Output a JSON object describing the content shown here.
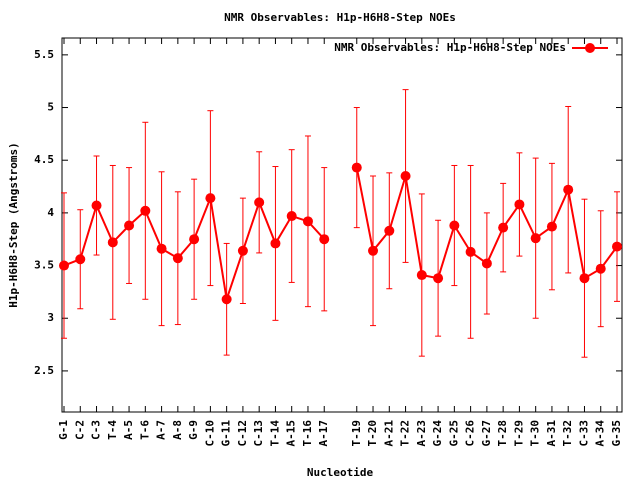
{
  "chart_data": {
    "type": "line",
    "title": "NMR Observables: H1p-H6H8-Step NOEs",
    "xlabel": "Nucleotide",
    "ylabel": "H1p-H6H8-Step (Angstroms)",
    "categories": [
      "G-1",
      "C-2",
      "C-3",
      "T-4",
      "A-5",
      "T-6",
      "A-7",
      "A-8",
      "G-9",
      "C-10",
      "G-11",
      "C-12",
      "C-13",
      "T-14",
      "A-15",
      "T-16",
      "A-17",
      null,
      "T-19",
      "T-20",
      "A-21",
      "T-22",
      "A-23",
      "G-24",
      "G-25",
      "C-26",
      "G-27",
      "T-28",
      "T-29",
      "T-30",
      "A-31",
      "T-32",
      "C-33",
      "A-34",
      "G-35"
    ],
    "series": [
      {
        "name": "NMR Observables: H1p-H6H8-Step NOEs",
        "color": "#ff0000",
        "values": [
          3.5,
          3.56,
          4.07,
          3.72,
          3.88,
          4.02,
          3.66,
          3.57,
          3.75,
          4.14,
          3.18,
          3.64,
          4.1,
          3.71,
          3.97,
          3.92,
          3.75,
          null,
          4.43,
          3.64,
          3.83,
          4.35,
          3.41,
          3.38,
          3.88,
          3.63,
          3.52,
          3.86,
          4.08,
          3.76,
          3.87,
          4.22,
          3.38,
          3.47,
          3.68
        ],
        "errors": [
          0.69,
          0.47,
          0.47,
          0.73,
          0.55,
          0.84,
          0.73,
          0.63,
          0.57,
          0.83,
          0.53,
          0.5,
          0.48,
          0.73,
          0.63,
          0.81,
          0.68,
          null,
          0.57,
          0.71,
          0.55,
          0.82,
          0.77,
          0.55,
          0.57,
          0.82,
          0.48,
          0.42,
          0.49,
          0.76,
          0.6,
          0.79,
          0.75,
          0.55,
          0.52
        ]
      }
    ],
    "ylim": [
      2.11,
      5.66
    ],
    "yticks": [
      2.5,
      3,
      3.5,
      4,
      4.5,
      5,
      5.5
    ],
    "legend": "upper right"
  }
}
